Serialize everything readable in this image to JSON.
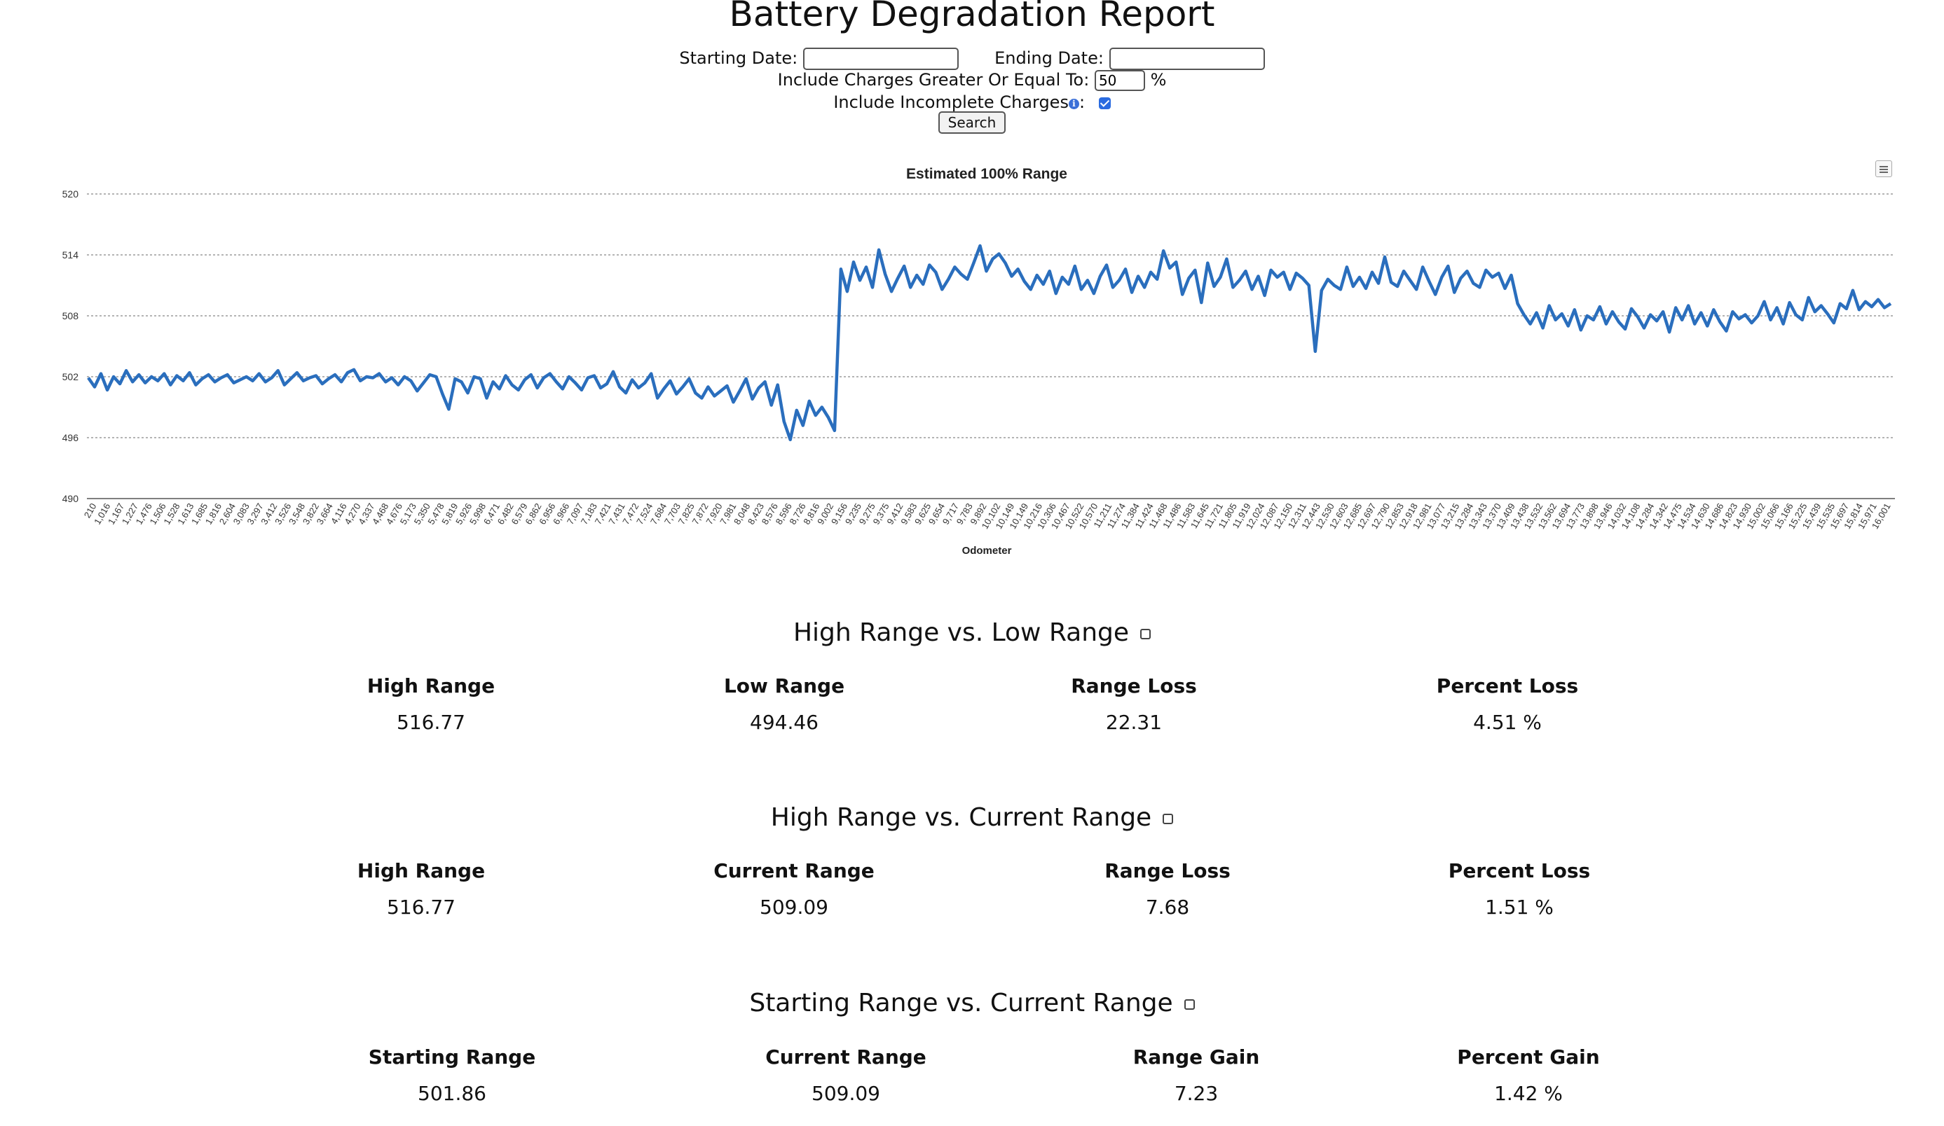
{
  "page_title": "Battery Degradation Report",
  "form": {
    "start_label": "Starting Date:",
    "start_value": "",
    "end_label": "Ending Date:",
    "end_value": "",
    "charges_label": "Include Charges Greater Or Equal To:",
    "charges_value": "50",
    "charges_unit": "%",
    "incomplete_label": "Include Incomplete Charges",
    "incomplete_suffix": ":",
    "incomplete_checked": true,
    "search_label": "Search"
  },
  "chart_data": {
    "type": "line",
    "title": "Estimated 100% Range",
    "xlabel": "Odometer",
    "ylabel": "",
    "ylim": [
      490,
      520
    ],
    "yticks": [
      490,
      496,
      502,
      508,
      514,
      520
    ],
    "grid": true,
    "color": "#2a6ebd",
    "x_tick_labels": [
      "210",
      "1,016",
      "1,167",
      "1,227",
      "1,476",
      "1,506",
      "1,528",
      "1,613",
      "1,685",
      "1,816",
      "2,604",
      "3,083",
      "3,297",
      "3,412",
      "3,526",
      "3,548",
      "3,822",
      "3,664",
      "4,116",
      "4,270",
      "4,337",
      "4,468",
      "4,676",
      "5,173",
      "5,350",
      "5,478",
      "5,819",
      "5,926",
      "5,998",
      "6,471",
      "6,482",
      "6,579",
      "6,862",
      "6,956",
      "6,966",
      "7,097",
      "7,183",
      "7,421",
      "7,431",
      "7,472",
      "7,524",
      "7,684",
      "7,703",
      "7,825",
      "7,872",
      "7,920",
      "7,981",
      "8,048",
      "8,423",
      "8,576",
      "8,596",
      "8,726",
      "8,816",
      "9,002",
      "9,156",
      "9,235",
      "9,275",
      "9,375",
      "9,412",
      "9,583",
      "9,625",
      "9,654",
      "9,717",
      "9,783",
      "9,892",
      "10,102",
      "10,149",
      "10,149",
      "10,216",
      "10,306",
      "10,467",
      "10,522",
      "10,570",
      "11,211",
      "11,274",
      "11,384",
      "11,424",
      "11,468",
      "11,486",
      "11,583",
      "11,645",
      "11,721",
      "11,805",
      "11,919",
      "12,024",
      "12,087",
      "12,150",
      "12,311",
      "12,443",
      "12,530",
      "12,603",
      "12,685",
      "12,697",
      "12,790",
      "12,853",
      "12,918",
      "12,981",
      "13,077",
      "13,215",
      "13,284",
      "13,343",
      "13,370",
      "13,409",
      "13,438",
      "13,532",
      "13,562",
      "13,694",
      "13,773",
      "13,898",
      "13,946",
      "14,032",
      "14,108",
      "14,284",
      "14,342",
      "14,475",
      "14,534",
      "14,630",
      "14,686",
      "14,823",
      "14,930",
      "15,002",
      "15,066",
      "15,166",
      "15,225",
      "15,439",
      "15,535",
      "15,697",
      "15,814",
      "15,971",
      "16,001"
    ],
    "series": [
      {
        "name": "",
        "values": [
          501.9,
          501.0,
          502.3,
          500.7,
          502.0,
          501.3,
          502.6,
          501.5,
          502.2,
          501.4,
          502.0,
          501.6,
          502.3,
          501.2,
          502.1,
          501.6,
          502.4,
          501.2,
          501.8,
          502.2,
          501.5,
          501.9,
          502.2,
          501.4,
          501.7,
          502.0,
          501.6,
          502.3,
          501.5,
          501.9,
          502.6,
          501.2,
          501.8,
          502.4,
          501.6,
          501.9,
          502.1,
          501.3,
          501.8,
          502.2,
          501.5,
          502.4,
          502.7,
          501.6,
          502.0,
          501.9,
          502.3,
          501.5,
          501.9,
          501.2,
          502.0,
          501.6,
          500.6,
          501.4,
          502.2,
          502.0,
          500.3,
          498.8,
          501.8,
          501.5,
          500.4,
          502.0,
          501.8,
          499.9,
          501.5,
          500.8,
          502.1,
          501.2,
          500.7,
          501.7,
          502.2,
          500.9,
          501.9,
          502.3,
          501.5,
          500.8,
          502.0,
          501.4,
          500.7,
          501.9,
          502.1,
          500.9,
          501.3,
          502.5,
          501.0,
          500.4,
          501.7,
          500.9,
          501.4,
          502.3,
          499.9,
          500.8,
          501.6,
          500.3,
          501.0,
          501.8,
          500.4,
          499.9,
          501.0,
          500.1,
          500.6,
          501.1,
          499.5,
          500.6,
          501.8,
          499.8,
          500.9,
          501.5,
          499.2,
          501.2,
          497.6,
          495.8,
          498.7,
          497.2,
          499.6,
          498.2,
          499.0,
          498.0,
          496.7,
          512.6,
          510.4,
          513.3,
          511.5,
          512.8,
          510.8,
          514.5,
          512.1,
          510.4,
          511.7,
          512.9,
          510.8,
          512.0,
          511.1,
          513.0,
          512.3,
          510.6,
          511.6,
          512.8,
          512.1,
          511.6,
          513.2,
          514.9,
          512.4,
          513.6,
          514.1,
          513.2,
          511.9,
          512.6,
          511.4,
          510.6,
          512.0,
          511.1,
          512.4,
          510.2,
          511.8,
          511.1,
          512.9,
          510.6,
          511.5,
          510.2,
          511.9,
          513.0,
          510.8,
          511.5,
          512.6,
          510.3,
          511.9,
          510.8,
          512.3,
          511.6,
          514.4,
          512.7,
          513.3,
          510.1,
          511.7,
          512.5,
          509.3,
          513.2,
          510.9,
          511.8,
          513.6,
          510.8,
          511.5,
          512.4,
          510.6,
          511.9,
          510.0,
          512.5,
          511.8,
          512.3,
          510.6,
          512.2,
          511.7,
          511.0,
          504.5,
          510.5,
          511.6,
          511.0,
          510.6,
          512.8,
          510.9,
          511.8,
          510.7,
          512.3,
          511.2,
          513.8,
          511.3,
          510.9,
          512.4,
          511.5,
          510.6,
          512.8,
          511.4,
          510.1,
          511.8,
          512.9,
          510.3,
          511.7,
          512.4,
          511.2,
          510.8,
          512.5,
          511.8,
          512.2,
          510.7,
          512.0,
          509.2,
          508.1,
          507.2,
          508.3,
          506.8,
          509.0,
          507.6,
          508.2,
          507.0,
          508.6,
          506.6,
          508.0,
          507.6,
          508.9,
          507.2,
          508.4,
          507.4,
          506.7,
          508.7,
          507.9,
          506.8,
          508.1,
          507.5,
          508.4,
          506.4,
          508.8,
          507.6,
          509.0,
          507.2,
          508.3,
          507.0,
          508.6,
          507.4,
          506.5,
          508.4,
          507.7,
          508.1,
          507.3,
          508.0,
          509.4,
          507.6,
          508.8,
          507.2,
          509.3,
          508.1,
          507.6,
          509.8,
          508.4,
          509.0,
          508.2,
          507.3,
          509.2,
          508.7,
          510.5,
          508.6,
          509.4,
          508.9,
          509.6,
          508.8,
          509.2
        ]
      }
    ]
  },
  "sections": [
    {
      "title": "High Range vs. Low Range",
      "stats": [
        {
          "label": "High Range",
          "value": "516.77"
        },
        {
          "label": "Low Range",
          "value": "494.46"
        },
        {
          "label": "Range Loss",
          "value": "22.31"
        },
        {
          "label": "Percent Loss",
          "value": "4.51 %"
        }
      ]
    },
    {
      "title": "High Range vs. Current Range",
      "stats": [
        {
          "label": "High Range",
          "value": "516.77"
        },
        {
          "label": "Current Range",
          "value": "509.09"
        },
        {
          "label": "Range Loss",
          "value": "7.68"
        },
        {
          "label": "Percent Loss",
          "value": "1.51 %"
        }
      ]
    },
    {
      "title": "Starting Range vs. Current Range",
      "stats": [
        {
          "label": "Starting Range",
          "value": "501.86"
        },
        {
          "label": "Current Range",
          "value": "509.09"
        },
        {
          "label": "Range Gain",
          "value": "7.23"
        },
        {
          "label": "Percent Gain",
          "value": "1.42 %"
        }
      ]
    }
  ]
}
